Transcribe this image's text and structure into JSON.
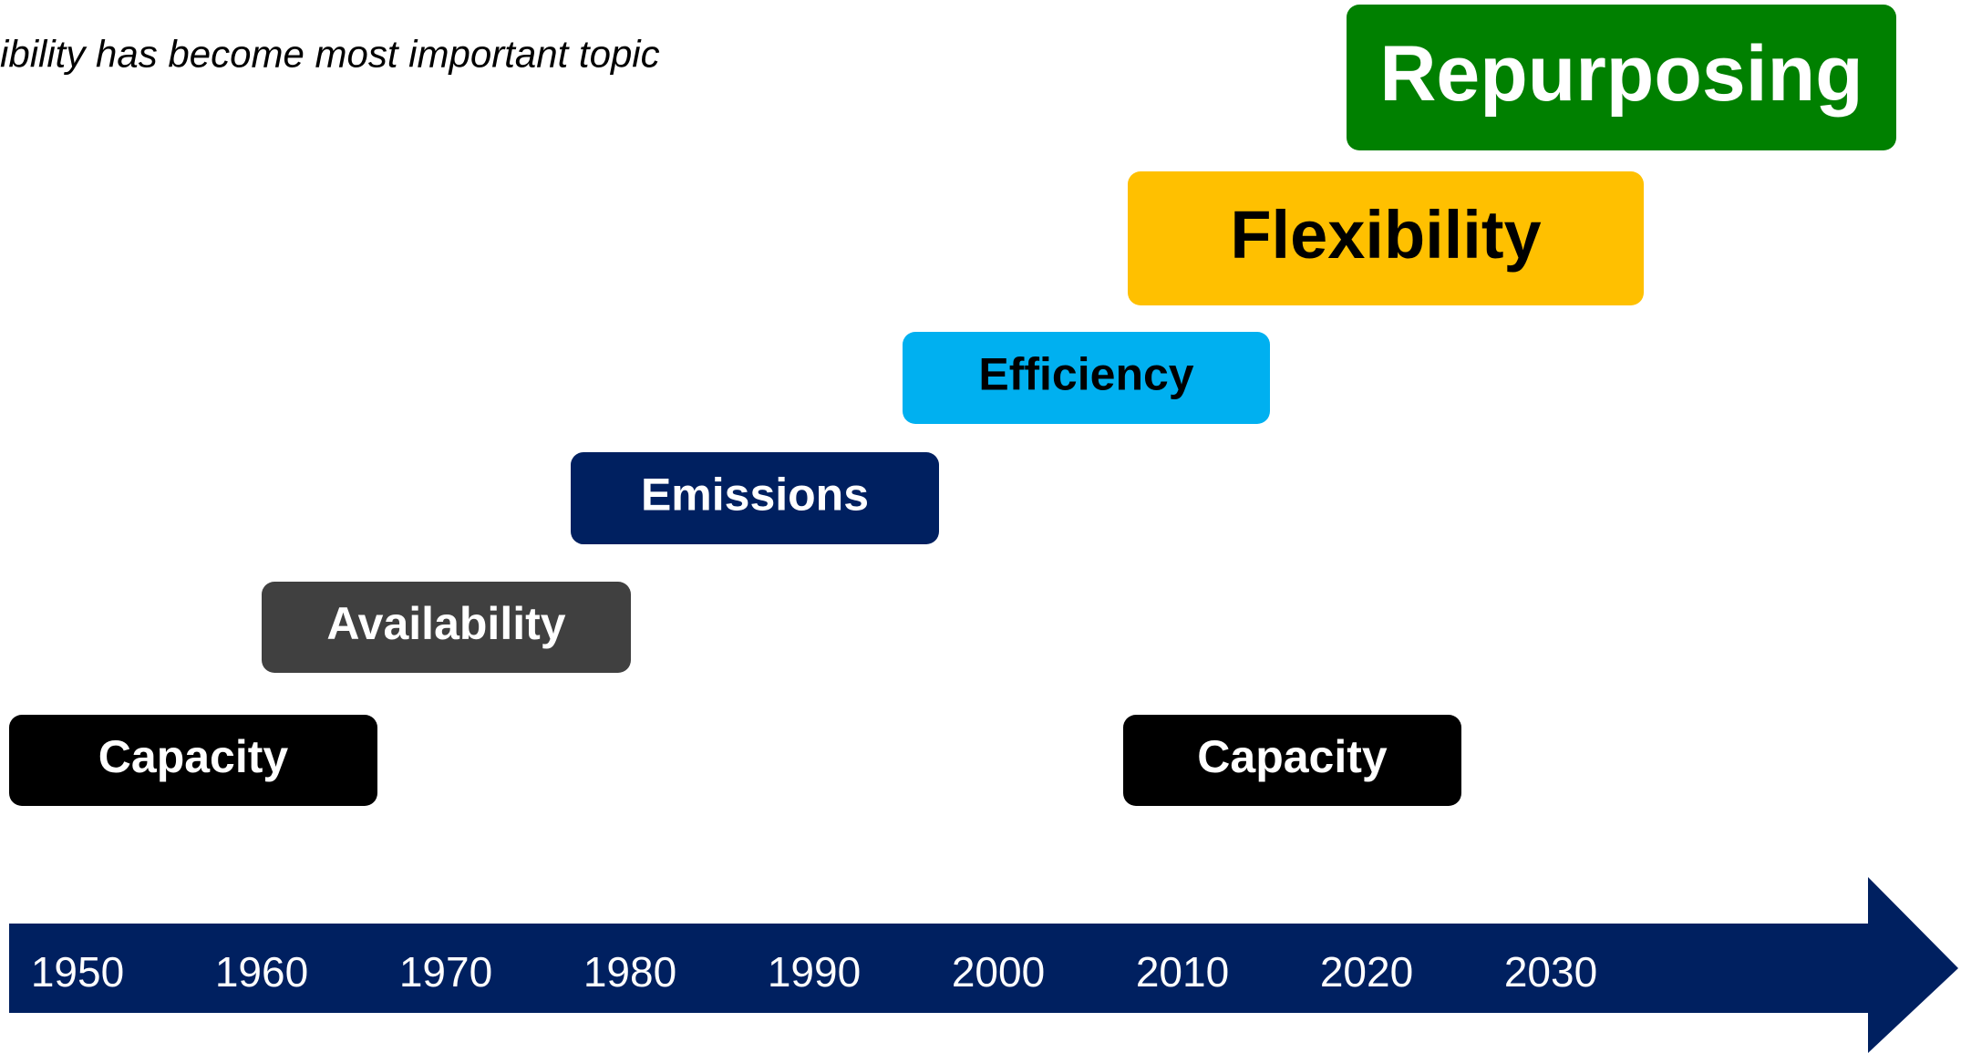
{
  "subtitle": "ibility has become most important topic",
  "boxes": [
    {
      "label": "Repurposing"
    },
    {
      "label": "Flexibility"
    },
    {
      "label": "Efficiency"
    },
    {
      "label": "Emissions"
    },
    {
      "label": "Availability"
    },
    {
      "label": "Capacity"
    },
    {
      "label": "Capacity"
    }
  ],
  "timeline": {
    "years": [
      "1950",
      "1960",
      "1970",
      "1980",
      "1990",
      "2000",
      "2010",
      "2020",
      "2030"
    ]
  }
}
